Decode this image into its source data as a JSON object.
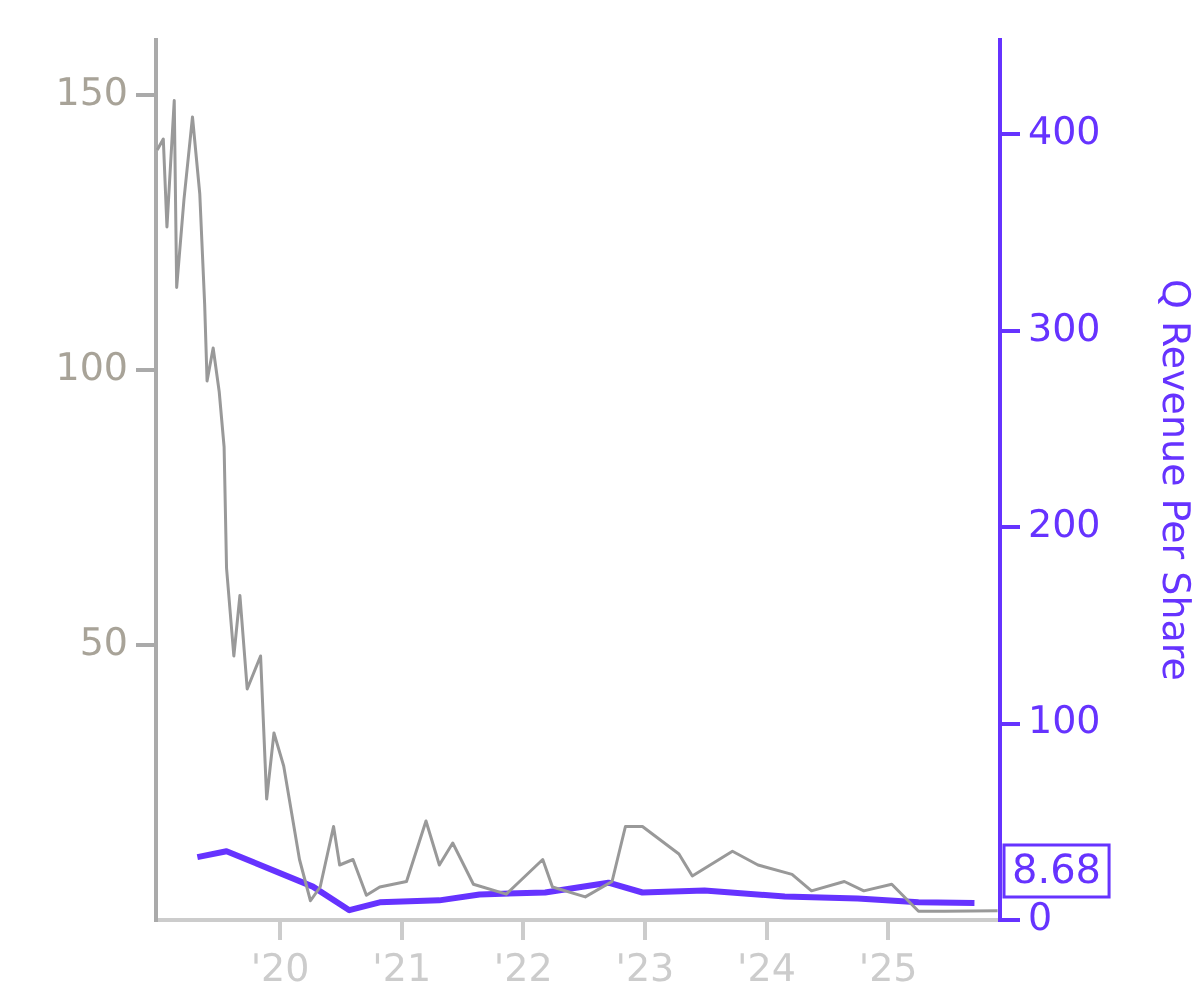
{
  "chart_data": {
    "type": "line",
    "y2label": "Q Revenue Per Share",
    "xlim": [
      2018.98,
      2025.92
    ],
    "xticks": [
      {
        "value": 2020,
        "label": "'20"
      },
      {
        "value": 2021,
        "label": "'21"
      },
      {
        "value": 2022,
        "label": "'22"
      },
      {
        "value": 2023,
        "label": "'23"
      },
      {
        "value": 2024,
        "label": "'24"
      },
      {
        "value": 2025,
        "label": "'25"
      }
    ],
    "ylim": [
      0,
      160
    ],
    "yticks": [
      50,
      100,
      150
    ],
    "y2lim": [
      0,
      448
    ],
    "y2ticks": [
      0,
      100,
      200,
      300,
      400
    ],
    "series": [
      {
        "color": "#999999",
        "x": [
          2018.99,
          2019.04,
          2019.07,
          2019.13,
          2019.15,
          2019.21,
          2019.28,
          2019.34,
          2019.38,
          2019.4,
          2019.45,
          2019.5,
          2019.54,
          2019.56,
          2019.62,
          2019.67,
          2019.73,
          2019.84,
          2019.89,
          2019.95,
          2020.03,
          2020.16,
          2020.25,
          2020.33,
          2020.44,
          2020.49,
          2020.6,
          2020.71,
          2020.82,
          2021.04,
          2021.2,
          2021.31,
          2021.42,
          2021.59,
          2021.86,
          2022.16,
          2022.24,
          2022.51,
          2022.73,
          2022.84,
          2022.98,
          2023.28,
          2023.39,
          2023.72,
          2023.93,
          2024.21,
          2024.37,
          2024.64,
          2024.8,
          2025.03,
          2025.25,
          2025.46,
          2025.9
        ],
        "values": [
          140,
          142,
          126,
          149,
          115,
          131,
          146,
          132,
          112,
          98,
          104,
          96,
          86,
          64,
          48,
          59,
          42,
          48,
          22,
          34,
          28,
          11,
          3.5,
          6,
          17,
          10,
          11,
          4.5,
          6,
          7,
          18,
          10,
          14,
          6.5,
          4.7,
          11,
          6,
          4.2,
          7,
          17,
          17,
          12,
          8,
          12.5,
          10,
          8.3,
          5.3,
          7,
          5.3,
          6.5,
          1.6,
          1.6,
          1.7
        ]
      },
      {
        "axis": "y2",
        "color": "#6633ff",
        "x": [
          2019.32,
          2019.56,
          2020.27,
          2020.57,
          2020.82,
          2021.31,
          2021.64,
          2022.18,
          2022.7,
          2022.98,
          2023.49,
          2024.15,
          2024.75,
          2025.25,
          2025.71
        ],
        "values": [
          32,
          35,
          17,
          5,
          9,
          10,
          13,
          14,
          19,
          14,
          15,
          12,
          11,
          9,
          8.68
        ],
        "value_labels": [
          null,
          null,
          null,
          null,
          null,
          null,
          null,
          null,
          null,
          null,
          null,
          null,
          null,
          null,
          "8.68"
        ]
      }
    ]
  }
}
